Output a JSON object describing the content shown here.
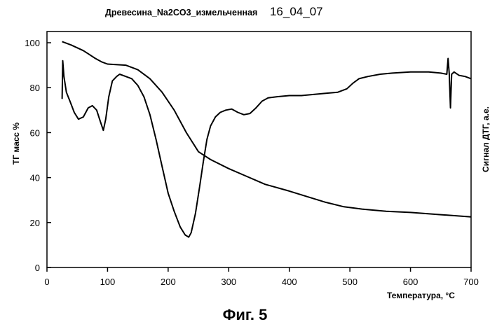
{
  "chart_data": {
    "type": "line",
    "title": "Древесина_Na2CO3_измельченная",
    "date": "16_04_07",
    "xlabel": "Температура, °C",
    "ylabel": "ТГ масс %",
    "ylabel_right": "Сигнал ДТГ, а.е.",
    "xlim": [
      0,
      700
    ],
    "ylim": [
      0,
      105
    ],
    "x_ticks": [
      0,
      100,
      200,
      300,
      400,
      500,
      600,
      700
    ],
    "y_ticks": [
      0,
      20,
      40,
      60,
      80,
      100
    ],
    "grid": false,
    "series": [
      {
        "points": [
          [
            25,
            100.5
          ],
          [
            40,
            99
          ],
          [
            60,
            96.5
          ],
          [
            80,
            93
          ],
          [
            90,
            91.5
          ],
          [
            100,
            90.5
          ],
          [
            130,
            90
          ],
          [
            150,
            88
          ],
          [
            170,
            84
          ],
          [
            190,
            78
          ],
          [
            210,
            70
          ],
          [
            230,
            60
          ],
          [
            250,
            51.5
          ],
          [
            270,
            48
          ],
          [
            300,
            44
          ],
          [
            330,
            40.5
          ],
          [
            360,
            37
          ],
          [
            400,
            34
          ],
          [
            430,
            31.5
          ],
          [
            460,
            29
          ],
          [
            490,
            27
          ],
          [
            520,
            26
          ],
          [
            560,
            25
          ],
          [
            600,
            24.5
          ],
          [
            650,
            23.5
          ],
          [
            700,
            22.5
          ]
        ]
      },
      {
        "points": [
          [
            25,
            75
          ],
          [
            26,
            92
          ],
          [
            28,
            85
          ],
          [
            32,
            78
          ],
          [
            38,
            74
          ],
          [
            45,
            69
          ],
          [
            52,
            66
          ],
          [
            60,
            67
          ],
          [
            68,
            71
          ],
          [
            75,
            72
          ],
          [
            82,
            70
          ],
          [
            88,
            65
          ],
          [
            93,
            61
          ],
          [
            97,
            66
          ],
          [
            102,
            76
          ],
          [
            108,
            83
          ],
          [
            115,
            85
          ],
          [
            120,
            86
          ],
          [
            130,
            85
          ],
          [
            140,
            84
          ],
          [
            150,
            81
          ],
          [
            160,
            76
          ],
          [
            170,
            68
          ],
          [
            180,
            57
          ],
          [
            190,
            45
          ],
          [
            200,
            33
          ],
          [
            210,
            25
          ],
          [
            220,
            18
          ],
          [
            228,
            14.5
          ],
          [
            234,
            13.5
          ],
          [
            238,
            15.5
          ],
          [
            245,
            24
          ],
          [
            252,
            36
          ],
          [
            258,
            47
          ],
          [
            264,
            57
          ],
          [
            270,
            63
          ],
          [
            278,
            67
          ],
          [
            286,
            69
          ],
          [
            295,
            70
          ],
          [
            305,
            70.5
          ],
          [
            315,
            69
          ],
          [
            325,
            68
          ],
          [
            335,
            68.5
          ],
          [
            345,
            71
          ],
          [
            355,
            74
          ],
          [
            365,
            75.5
          ],
          [
            380,
            76
          ],
          [
            400,
            76.5
          ],
          [
            420,
            76.5
          ],
          [
            440,
            77
          ],
          [
            460,
            77.5
          ],
          [
            480,
            78
          ],
          [
            495,
            79.5
          ],
          [
            505,
            82
          ],
          [
            515,
            84
          ],
          [
            530,
            85
          ],
          [
            550,
            86
          ],
          [
            570,
            86.5
          ],
          [
            600,
            87
          ],
          [
            630,
            87
          ],
          [
            650,
            86.5
          ],
          [
            660,
            86
          ],
          [
            662,
            93
          ],
          [
            664,
            86
          ],
          [
            666,
            71
          ],
          [
            668,
            86
          ],
          [
            672,
            87
          ],
          [
            680,
            85.5
          ],
          [
            690,
            85
          ],
          [
            700,
            84
          ]
        ]
      }
    ]
  },
  "caption": "Фиг. 5"
}
